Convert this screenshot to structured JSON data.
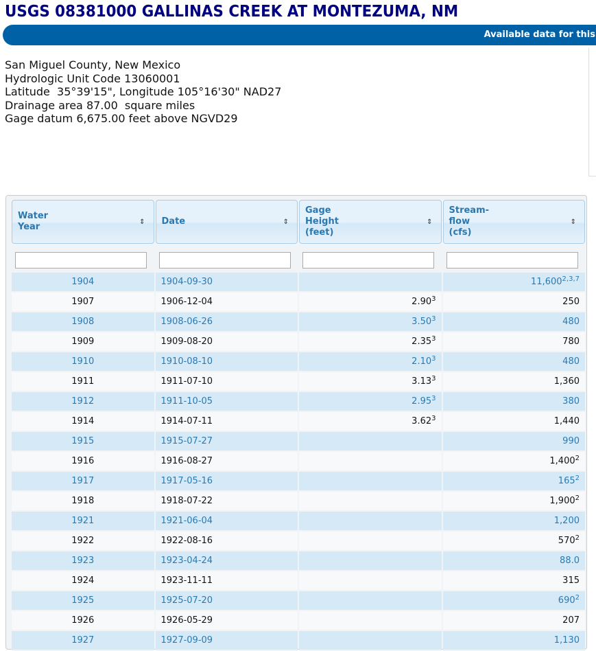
{
  "title": "USGS 08381000 GALLINAS CREEK AT MONTEZUMA, NM",
  "banner": "Available data for this",
  "info": [
    "San Miguel County, New Mexico",
    "Hydrologic Unit Code 13060001",
    "Latitude  35°39'15\", Longitude 105°16'30\" NAD27",
    "Drainage area 87.00  square miles",
    "Gage datum 6,675.00 feet above NGVD29"
  ],
  "columns": [
    {
      "l1": "Water",
      "l2": "Year",
      "l3": ""
    },
    {
      "l1": "Date",
      "l2": "",
      "l3": ""
    },
    {
      "l1": "Gage",
      "l2": "Height",
      "l3": "(feet)"
    },
    {
      "l1": "Stream-",
      "l2": "flow",
      "l3": "(cfs)"
    }
  ],
  "sort_icon": "⇕",
  "rows": [
    {
      "year": "1904",
      "date": "1904-09-30",
      "gage": "",
      "gsup": "",
      "flow": "11,600",
      "fsup": "2,3,7"
    },
    {
      "year": "1907",
      "date": "1906-12-04",
      "gage": "2.90",
      "gsup": "3",
      "flow": "250",
      "fsup": ""
    },
    {
      "year": "1908",
      "date": "1908-06-26",
      "gage": "3.50",
      "gsup": "3",
      "flow": "480",
      "fsup": ""
    },
    {
      "year": "1909",
      "date": "1909-08-20",
      "gage": "2.35",
      "gsup": "3",
      "flow": "780",
      "fsup": ""
    },
    {
      "year": "1910",
      "date": "1910-08-10",
      "gage": "2.10",
      "gsup": "3",
      "flow": "480",
      "fsup": ""
    },
    {
      "year": "1911",
      "date": "1911-07-10",
      "gage": "3.13",
      "gsup": "3",
      "flow": "1,360",
      "fsup": ""
    },
    {
      "year": "1912",
      "date": "1911-10-05",
      "gage": "2.95",
      "gsup": "3",
      "flow": "380",
      "fsup": ""
    },
    {
      "year": "1914",
      "date": "1914-07-11",
      "gage": "3.62",
      "gsup": "3",
      "flow": "1,440",
      "fsup": ""
    },
    {
      "year": "1915",
      "date": "1915-07-27",
      "gage": "",
      "gsup": "",
      "flow": "990",
      "fsup": ""
    },
    {
      "year": "1916",
      "date": "1916-08-27",
      "gage": "",
      "gsup": "",
      "flow": "1,400",
      "fsup": "2"
    },
    {
      "year": "1917",
      "date": "1917-05-16",
      "gage": "",
      "gsup": "",
      "flow": "165",
      "fsup": "2"
    },
    {
      "year": "1918",
      "date": "1918-07-22",
      "gage": "",
      "gsup": "",
      "flow": "1,900",
      "fsup": "2"
    },
    {
      "year": "1921",
      "date": "1921-06-04",
      "gage": "",
      "gsup": "",
      "flow": "1,200",
      "fsup": ""
    },
    {
      "year": "1922",
      "date": "1922-08-16",
      "gage": "",
      "gsup": "",
      "flow": "570",
      "fsup": "2"
    },
    {
      "year": "1923",
      "date": "1923-04-24",
      "gage": "",
      "gsup": "",
      "flow": "88.0",
      "fsup": ""
    },
    {
      "year": "1924",
      "date": "1923-11-11",
      "gage": "",
      "gsup": "",
      "flow": "315",
      "fsup": ""
    },
    {
      "year": "1925",
      "date": "1925-07-20",
      "gage": "",
      "gsup": "",
      "flow": "690",
      "fsup": "2"
    },
    {
      "year": "1926",
      "date": "1926-05-29",
      "gage": "",
      "gsup": "",
      "flow": "207",
      "fsup": ""
    },
    {
      "year": "1927",
      "date": "1927-09-09",
      "gage": "",
      "gsup": "",
      "flow": "1,130",
      "fsup": ""
    }
  ]
}
